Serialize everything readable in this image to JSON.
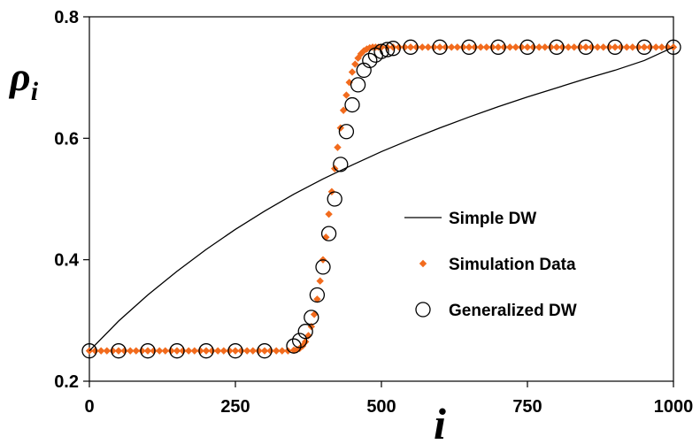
{
  "chart_data": {
    "type": "line",
    "title": "",
    "xlabel": "i",
    "ylabel": {
      "main": "ρ",
      "sub": "i"
    },
    "xlim": [
      0,
      1000
    ],
    "ylim": [
      0.2,
      0.8
    ],
    "x_ticks": [
      0,
      250,
      500,
      750,
      1000
    ],
    "x_tick_labels": [
      "0",
      "250",
      "500",
      "750",
      "1000"
    ],
    "y_ticks": [
      0.2,
      0.4,
      0.6,
      0.8
    ],
    "y_tick_labels": [
      "0.2",
      "0.4",
      "0.6",
      "0.8"
    ],
    "grid": false,
    "legend_position": "center-right",
    "series": [
      {
        "name": "Simple DW",
        "style": "line",
        "color": "#000000",
        "x": [
          0,
          50,
          100,
          150,
          200,
          250,
          300,
          350,
          400,
          450,
          500,
          550,
          600,
          650,
          700,
          750,
          800,
          850,
          900,
          950,
          1000
        ],
        "y": [
          0.25,
          0.299,
          0.342,
          0.381,
          0.417,
          0.45,
          0.48,
          0.508,
          0.533,
          0.556,
          0.578,
          0.598,
          0.617,
          0.635,
          0.652,
          0.668,
          0.683,
          0.698,
          0.712,
          0.728,
          0.75
        ]
      },
      {
        "name": "Simulation Data",
        "style": "diamond",
        "color": "#f26b1d",
        "x": [
          0,
          10,
          20,
          30,
          40,
          50,
          60,
          70,
          80,
          90,
          100,
          110,
          120,
          130,
          140,
          150,
          160,
          170,
          180,
          190,
          200,
          210,
          220,
          230,
          240,
          250,
          260,
          270,
          280,
          290,
          300,
          310,
          320,
          330,
          340,
          350,
          355,
          360,
          365,
          370,
          375,
          380,
          385,
          390,
          395,
          400,
          405,
          410,
          415,
          420,
          425,
          430,
          435,
          440,
          445,
          450,
          455,
          460,
          465,
          470,
          475,
          480,
          485,
          490,
          495,
          500,
          510,
          520,
          530,
          540,
          550,
          560,
          570,
          580,
          590,
          600,
          610,
          620,
          630,
          640,
          650,
          660,
          670,
          680,
          690,
          700,
          710,
          720,
          730,
          740,
          750,
          760,
          770,
          780,
          790,
          800,
          810,
          820,
          830,
          840,
          850,
          860,
          870,
          880,
          890,
          900,
          910,
          920,
          930,
          940,
          950,
          960,
          970,
          980,
          990,
          1000
        ],
        "y": [
          0.25,
          0.25,
          0.25,
          0.25,
          0.25,
          0.25,
          0.25,
          0.25,
          0.25,
          0.25,
          0.25,
          0.25,
          0.25,
          0.25,
          0.25,
          0.25,
          0.25,
          0.25,
          0.25,
          0.25,
          0.25,
          0.25,
          0.25,
          0.25,
          0.25,
          0.25,
          0.25,
          0.25,
          0.25,
          0.25,
          0.25,
          0.25,
          0.25,
          0.25,
          0.25,
          0.251,
          0.252,
          0.254,
          0.258,
          0.265,
          0.275,
          0.29,
          0.31,
          0.335,
          0.365,
          0.4,
          0.437,
          0.475,
          0.512,
          0.55,
          0.585,
          0.617,
          0.646,
          0.671,
          0.692,
          0.709,
          0.722,
          0.732,
          0.739,
          0.744,
          0.747,
          0.749,
          0.75,
          0.75,
          0.75,
          0.75,
          0.75,
          0.75,
          0.75,
          0.75,
          0.75,
          0.75,
          0.75,
          0.75,
          0.75,
          0.75,
          0.75,
          0.75,
          0.75,
          0.75,
          0.75,
          0.75,
          0.75,
          0.75,
          0.75,
          0.75,
          0.75,
          0.75,
          0.75,
          0.75,
          0.75,
          0.75,
          0.75,
          0.75,
          0.75,
          0.75,
          0.75,
          0.75,
          0.75,
          0.75,
          0.75,
          0.75,
          0.75,
          0.75,
          0.75,
          0.75,
          0.75,
          0.75,
          0.75,
          0.75,
          0.75,
          0.75,
          0.75,
          0.75,
          0.75,
          0.75
        ]
      },
      {
        "name": "Generalized DW",
        "style": "open-circle",
        "color": "#000000",
        "x": [
          0,
          50,
          100,
          150,
          200,
          250,
          300,
          350,
          360,
          370,
          380,
          390,
          400,
          410,
          420,
          430,
          440,
          450,
          460,
          470,
          480,
          490,
          500,
          510,
          520,
          550,
          600,
          650,
          700,
          750,
          800,
          850,
          900,
          950,
          1000
        ],
        "y": [
          0.25,
          0.25,
          0.25,
          0.25,
          0.25,
          0.25,
          0.25,
          0.258,
          0.267,
          0.282,
          0.305,
          0.342,
          0.388,
          0.443,
          0.5,
          0.557,
          0.611,
          0.655,
          0.688,
          0.712,
          0.728,
          0.737,
          0.743,
          0.746,
          0.748,
          0.75,
          0.75,
          0.75,
          0.75,
          0.75,
          0.75,
          0.75,
          0.75,
          0.75,
          0.75
        ]
      }
    ]
  }
}
